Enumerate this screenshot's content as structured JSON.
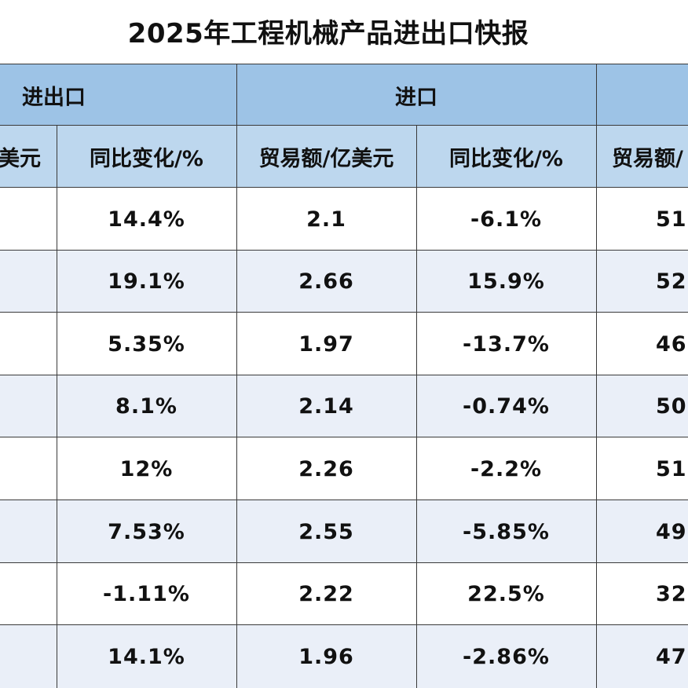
{
  "title": "2025年工程机械产品进出口快报",
  "header": {
    "group_trade": "进出口",
    "group_import": "进口",
    "group_export": "",
    "col_trade_amount_partial": "美元",
    "col_trade_yoy": "同比变化/%",
    "col_import_amount": "贸易额/亿美元",
    "col_import_yoy": "同比变化/%",
    "col_export_amount_partial": "贸易额/"
  },
  "rows": [
    {
      "trade_yoy": "14.4%",
      "import_amount": "2.1",
      "import_yoy": "-6.1%",
      "export_partial": "51."
    },
    {
      "trade_yoy": "19.1%",
      "import_amount": "2.66",
      "import_yoy": "15.9%",
      "export_partial": "52."
    },
    {
      "trade_yoy": "5.35%",
      "import_amount": "1.97",
      "import_yoy": "-13.7%",
      "export_partial": "46."
    },
    {
      "trade_yoy": "8.1%",
      "import_amount": "2.14",
      "import_yoy": "-0.74%",
      "export_partial": "50."
    },
    {
      "trade_yoy": "12%",
      "import_amount": "2.26",
      "import_yoy": "-2.2%",
      "export_partial": "51."
    },
    {
      "trade_yoy": "7.53%",
      "import_amount": "2.55",
      "import_yoy": "-5.85%",
      "export_partial": "49."
    },
    {
      "trade_yoy": "-1.11%",
      "import_amount": "2.22",
      "import_yoy": "22.5%",
      "export_partial": "32."
    },
    {
      "trade_yoy": "14.1%",
      "import_amount": "1.96",
      "import_yoy": "-2.86%",
      "export_partial": "47."
    }
  ],
  "colors": {
    "header_group": "#9dc3e6",
    "header_sub": "#bdd7ee",
    "row_alt": "#eaeff8",
    "grid_line": "#3a3a3a"
  }
}
